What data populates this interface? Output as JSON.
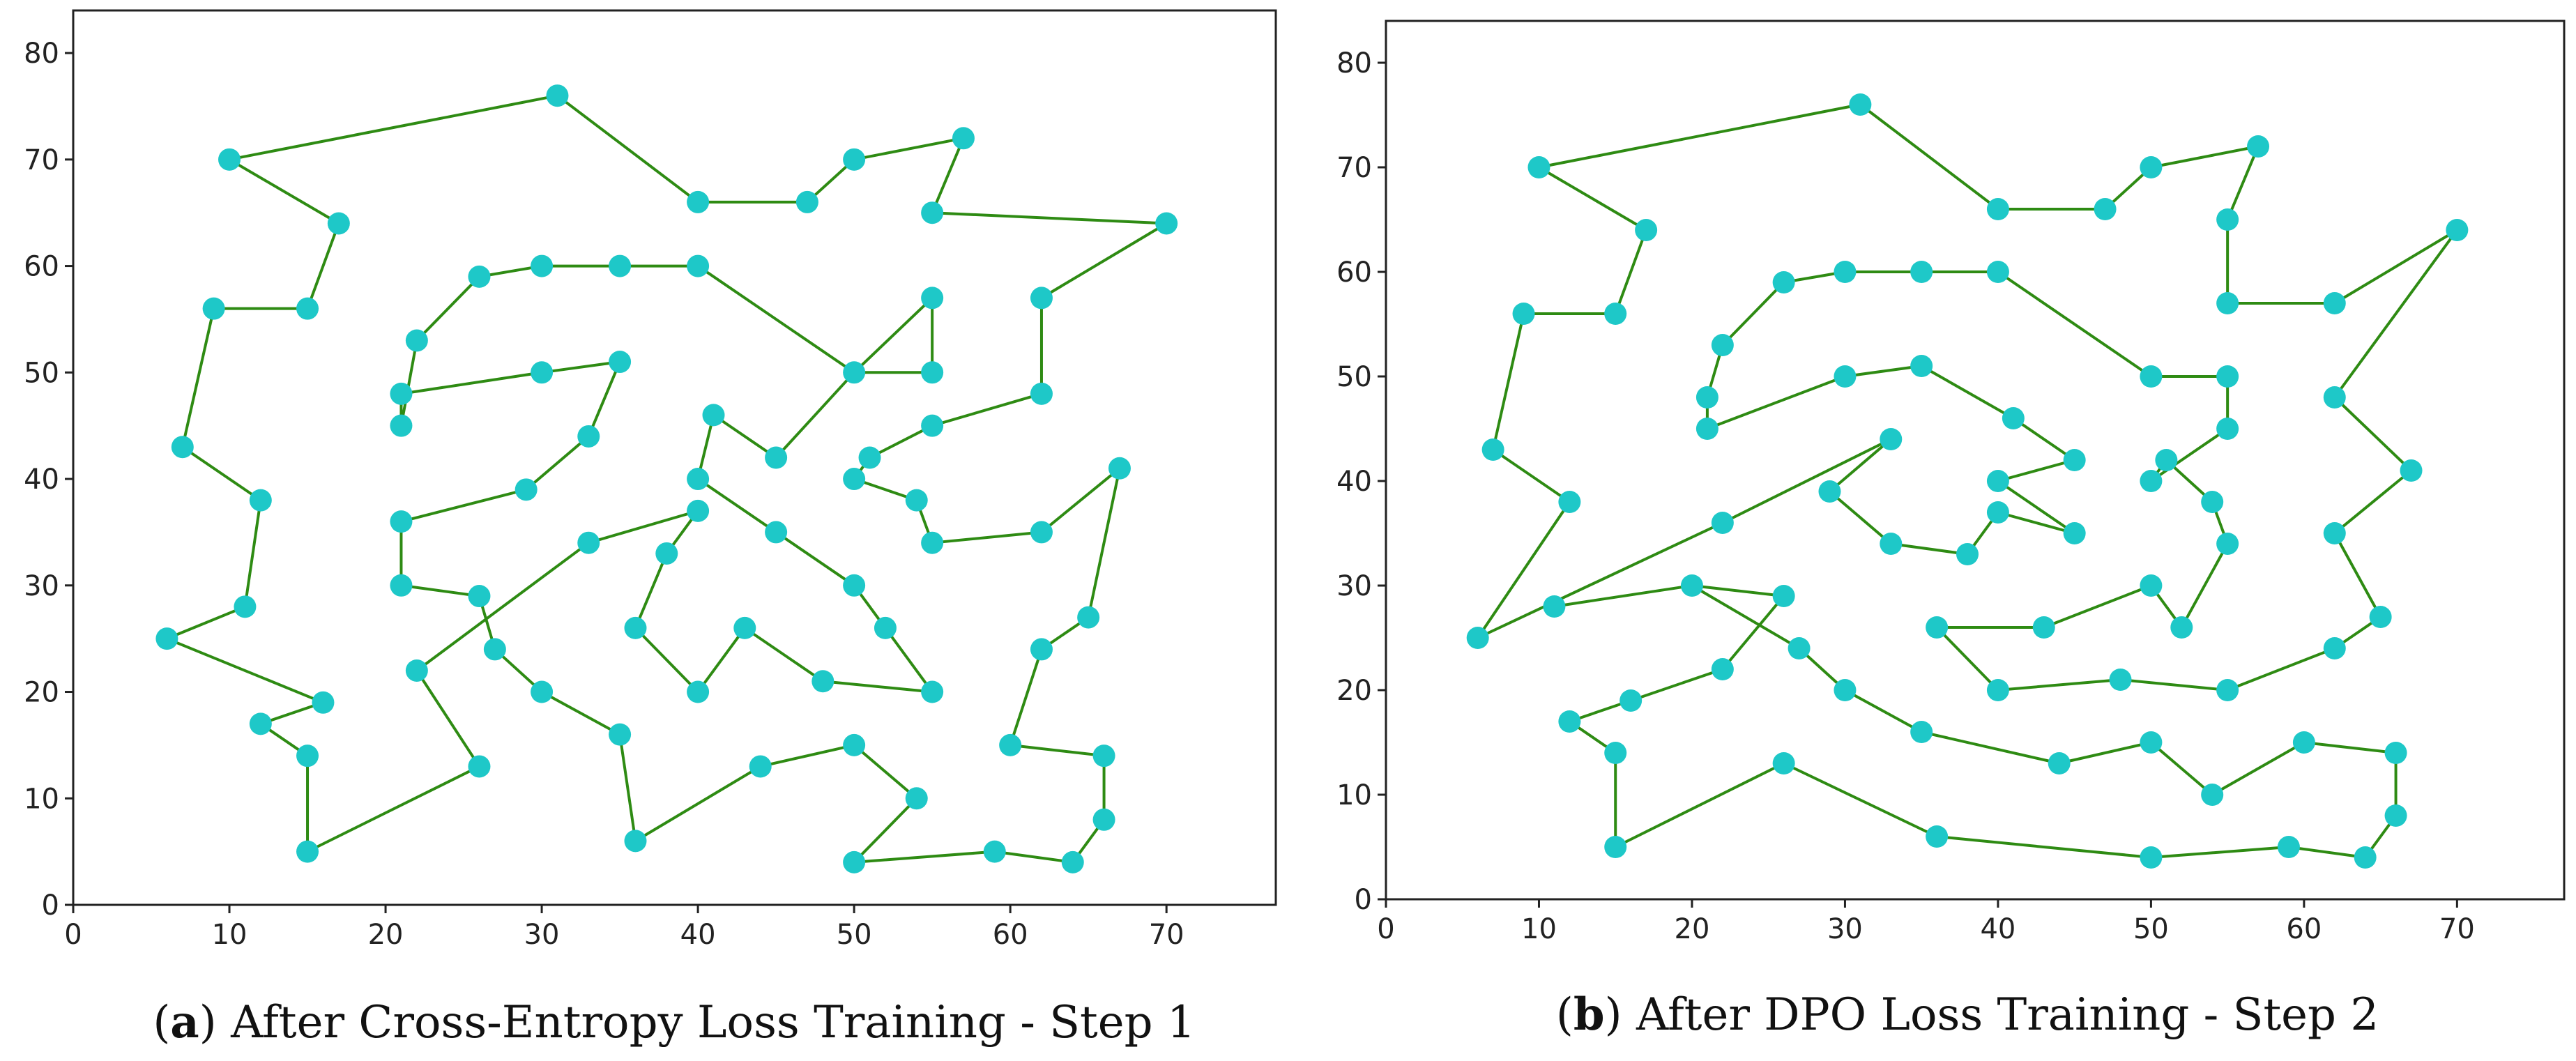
{
  "colors": {
    "edge": "#2e8b13",
    "node": "#1ec8c8"
  },
  "chart_data": [
    {
      "type": "line",
      "panel_letter": "a",
      "caption_text": "After Cross-Entropy Loss Training - Step 1",
      "xlim": [
        0,
        77
      ],
      "ylim": [
        0,
        84
      ],
      "x_ticks": [
        "0",
        "10",
        "20",
        "30",
        "40",
        "50",
        "60",
        "70"
      ],
      "y_ticks": [
        "0",
        "10",
        "20",
        "30",
        "40",
        "50",
        "60",
        "70",
        "80"
      ],
      "tour": [
        [
          10,
          70
        ],
        [
          31,
          76
        ],
        [
          40,
          66
        ],
        [
          47,
          66
        ],
        [
          50,
          70
        ],
        [
          57,
          72
        ],
        [
          55,
          65
        ],
        [
          70,
          64
        ],
        [
          62,
          57
        ],
        [
          62,
          48
        ],
        [
          55,
          45
        ],
        [
          51,
          42
        ],
        [
          50,
          40
        ],
        [
          54,
          38
        ],
        [
          55,
          34
        ],
        [
          62,
          35
        ],
        [
          67,
          41
        ],
        [
          65,
          27
        ],
        [
          62,
          24
        ],
        [
          60,
          15
        ],
        [
          66,
          14
        ],
        [
          66,
          8
        ],
        [
          64,
          4
        ],
        [
          59,
          5
        ],
        [
          50,
          4
        ],
        [
          54,
          10
        ],
        [
          50,
          15
        ],
        [
          44,
          13
        ],
        [
          36,
          6
        ],
        [
          35,
          16
        ],
        [
          30,
          20
        ],
        [
          27,
          24
        ],
        [
          26,
          29
        ],
        [
          21,
          30
        ],
        [
          21,
          36
        ],
        [
          29,
          39
        ],
        [
          33,
          44
        ],
        [
          35,
          51
        ],
        [
          30,
          50
        ],
        [
          21,
          48
        ],
        [
          21,
          45
        ],
        [
          22,
          53
        ],
        [
          26,
          59
        ],
        [
          30,
          60
        ],
        [
          35,
          60
        ],
        [
          40,
          60
        ],
        [
          50,
          50
        ],
        [
          55,
          50
        ],
        [
          55,
          57
        ],
        [
          50,
          50
        ],
        [
          45,
          42
        ],
        [
          41,
          46
        ],
        [
          40,
          40
        ],
        [
          45,
          35
        ],
        [
          50,
          30
        ],
        [
          52,
          26
        ],
        [
          55,
          20
        ],
        [
          48,
          21
        ],
        [
          43,
          26
        ],
        [
          40,
          20
        ],
        [
          36,
          26
        ],
        [
          38,
          33
        ],
        [
          40,
          37
        ],
        [
          33,
          34
        ],
        [
          22,
          22
        ],
        [
          26,
          13
        ],
        [
          15,
          5
        ],
        [
          15,
          14
        ],
        [
          12,
          17
        ],
        [
          16,
          19
        ],
        [
          6,
          25
        ],
        [
          11,
          28
        ],
        [
          12,
          38
        ],
        [
          7,
          43
        ],
        [
          9,
          56
        ],
        [
          15,
          56
        ],
        [
          17,
          64
        ],
        [
          10,
          70
        ]
      ]
    },
    {
      "type": "line",
      "panel_letter": "b",
      "caption_text": "After DPO Loss Training - Step 2",
      "xlim": [
        0,
        77
      ],
      "ylim": [
        0,
        84
      ],
      "x_ticks": [
        "0",
        "10",
        "20",
        "30",
        "40",
        "50",
        "60",
        "70"
      ],
      "y_ticks": [
        "0",
        "10",
        "20",
        "30",
        "40",
        "50",
        "60",
        "70",
        "80"
      ],
      "tour": [
        [
          10,
          70
        ],
        [
          31,
          76
        ],
        [
          40,
          66
        ],
        [
          47,
          66
        ],
        [
          50,
          70
        ],
        [
          57,
          72
        ],
        [
          55,
          65
        ],
        [
          55,
          57
        ],
        [
          62,
          57
        ],
        [
          62,
          57
        ],
        [
          70,
          64
        ],
        [
          62,
          48
        ],
        [
          67,
          41
        ],
        [
          62,
          35
        ],
        [
          65,
          27
        ],
        [
          62,
          24
        ],
        [
          55,
          20
        ],
        [
          48,
          21
        ],
        [
          40,
          20
        ],
        [
          36,
          26
        ],
        [
          43,
          26
        ],
        [
          50,
          30
        ],
        [
          52,
          26
        ],
        [
          55,
          34
        ],
        [
          54,
          38
        ],
        [
          51,
          42
        ],
        [
          50,
          40
        ],
        [
          55,
          45
        ],
        [
          55,
          50
        ],
        [
          50,
          50
        ],
        [
          40,
          60
        ],
        [
          35,
          60
        ],
        [
          30,
          60
        ],
        [
          26,
          59
        ],
        [
          22,
          53
        ],
        [
          21,
          48
        ],
        [
          21,
          45
        ],
        [
          30,
          50
        ],
        [
          35,
          51
        ],
        [
          41,
          46
        ],
        [
          45,
          42
        ],
        [
          40,
          40
        ],
        [
          45,
          35
        ],
        [
          40,
          37
        ],
        [
          38,
          33
        ],
        [
          33,
          34
        ],
        [
          29,
          39
        ],
        [
          33,
          44
        ],
        [
          22,
          36
        ],
        [
          6,
          25
        ],
        [
          12,
          38
        ],
        [
          7,
          43
        ],
        [
          9,
          56
        ],
        [
          15,
          56
        ],
        [
          17,
          64
        ],
        [
          10,
          70
        ]
      ],
      "tour2": [
        [
          11,
          28
        ],
        [
          20,
          30
        ],
        [
          26,
          29
        ],
        [
          22,
          22
        ],
        [
          16,
          19
        ],
        [
          12,
          17
        ],
        [
          15,
          14
        ],
        [
          15,
          5
        ],
        [
          26,
          13
        ],
        [
          36,
          6
        ],
        [
          50,
          4
        ],
        [
          59,
          5
        ],
        [
          64,
          4
        ],
        [
          66,
          8
        ],
        [
          66,
          14
        ],
        [
          60,
          15
        ],
        [
          54,
          10
        ],
        [
          50,
          15
        ],
        [
          44,
          13
        ],
        [
          35,
          16
        ],
        [
          30,
          20
        ],
        [
          27,
          24
        ],
        [
          20,
          30
        ]
      ]
    }
  ]
}
